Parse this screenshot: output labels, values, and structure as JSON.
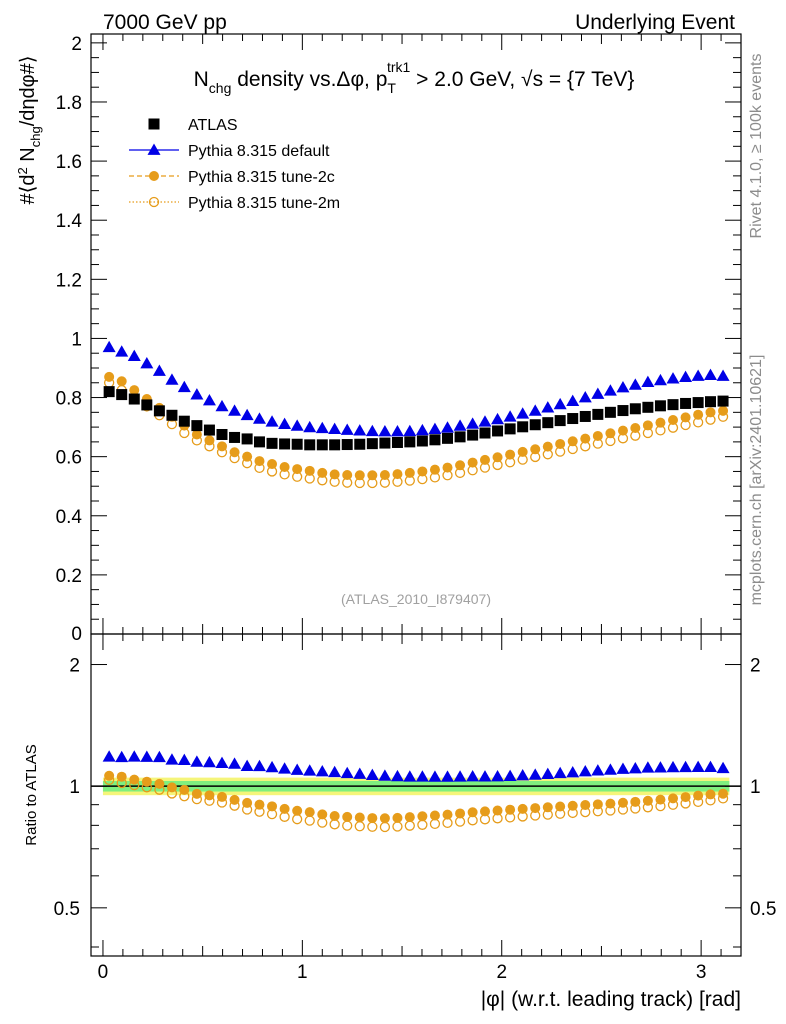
{
  "header": {
    "left": "7000 GeV pp",
    "right": "Underlying Event"
  },
  "side_labels": {
    "top": "Rivet 4.1.0, ≥ 100k events",
    "bottom": "mcplots.cern.ch [arXiv:2401.10621]"
  },
  "colors": {
    "atlas": "#000000",
    "default": "#0000e6",
    "tune2c": "#e69c1a",
    "tune2m": "#e69c1a",
    "band_inner": "#7fef7f",
    "band_outer": "#f5f57a"
  },
  "chart_data": [
    {
      "type": "scatter",
      "title": "N_chg density vs.Δφ, p_T^trk1 > 2.0 GeV, √s = {7 TeV}",
      "title_parts": {
        "main": "N",
        "main_sub": "chg",
        "mid": " density vs.Δφ, p",
        "pt_sub": "T",
        "pt_sup": "trk1",
        "tail": " > 2.0 GeV, √s = {7 TeV}"
      },
      "ylabel": "#⟨d² N_chg/dηdφ#⟩",
      "ylabel_parts": {
        "a": "#⟨d",
        "sup": "2",
        "b": " N",
        "sub": "chg",
        "c": "/dηdφ#⟩"
      },
      "xlim": [
        -0.06,
        3.2
      ],
      "ylim": [
        0,
        2.03
      ],
      "yticks": [
        0.2,
        0.4,
        0.6,
        0.8,
        1,
        1.2,
        1.4,
        1.6,
        1.8,
        2
      ],
      "ytick_labels": [
        "0.2",
        "0.4",
        "0.6",
        "0.8",
        "1",
        "1.2",
        "1.4",
        "1.6",
        "1.8",
        "2"
      ],
      "ytick_zero_label": "0",
      "watermark": "(ATLAS_2010_I879407)",
      "legend": [
        {
          "name": "ATLAS",
          "key": "atlas",
          "marker": "square"
        },
        {
          "name": "Pythia 8.315 default",
          "key": "default",
          "marker": "triangle"
        },
        {
          "name": "Pythia 8.315 tune-2c",
          "key": "tune2c",
          "marker": "circle"
        },
        {
          "name": "Pythia 8.315 tune-2m",
          "key": "tune2m",
          "marker": "open-circle"
        }
      ],
      "x": [
        0.031,
        0.094,
        0.157,
        0.22,
        0.283,
        0.346,
        0.408,
        0.471,
        0.534,
        0.597,
        0.66,
        0.723,
        0.785,
        0.848,
        0.911,
        0.974,
        1.037,
        1.1,
        1.162,
        1.225,
        1.288,
        1.351,
        1.414,
        1.477,
        1.539,
        1.602,
        1.665,
        1.728,
        1.791,
        1.854,
        1.916,
        1.979,
        2.042,
        2.105,
        2.168,
        2.231,
        2.293,
        2.356,
        2.419,
        2.482,
        2.545,
        2.608,
        2.67,
        2.733,
        2.796,
        2.859,
        2.922,
        2.985,
        3.047,
        3.11
      ],
      "series": [
        {
          "name": "ATLAS",
          "key": "atlas",
          "values": [
            0.82,
            0.81,
            0.795,
            0.775,
            0.755,
            0.74,
            0.72,
            0.705,
            0.69,
            0.675,
            0.665,
            0.66,
            0.65,
            0.645,
            0.643,
            0.642,
            0.64,
            0.64,
            0.64,
            0.641,
            0.642,
            0.644,
            0.646,
            0.648,
            0.65,
            0.653,
            0.657,
            0.662,
            0.667,
            0.673,
            0.68,
            0.687,
            0.694,
            0.701,
            0.708,
            0.715,
            0.722,
            0.729,
            0.736,
            0.743,
            0.75,
            0.756,
            0.762,
            0.767,
            0.772,
            0.776,
            0.78,
            0.783,
            0.786,
            0.788
          ]
        },
        {
          "name": "Pythia 8.315 default",
          "key": "default",
          "values": [
            0.97,
            0.955,
            0.94,
            0.915,
            0.89,
            0.86,
            0.835,
            0.81,
            0.79,
            0.77,
            0.755,
            0.74,
            0.728,
            0.718,
            0.71,
            0.704,
            0.699,
            0.696,
            0.693,
            0.69,
            0.688,
            0.686,
            0.685,
            0.685,
            0.686,
            0.689,
            0.693,
            0.698,
            0.704,
            0.711,
            0.718,
            0.726,
            0.735,
            0.745,
            0.755,
            0.766,
            0.777,
            0.788,
            0.8,
            0.812,
            0.823,
            0.834,
            0.843,
            0.852,
            0.858,
            0.864,
            0.869,
            0.873,
            0.876,
            0.873
          ]
        },
        {
          "name": "Pythia 8.315 tune-2c",
          "key": "tune2c",
          "values": [
            0.87,
            0.855,
            0.825,
            0.795,
            0.765,
            0.735,
            0.705,
            0.675,
            0.655,
            0.635,
            0.615,
            0.6,
            0.585,
            0.575,
            0.565,
            0.558,
            0.552,
            0.545,
            0.54,
            0.538,
            0.537,
            0.537,
            0.538,
            0.541,
            0.545,
            0.55,
            0.556,
            0.563,
            0.571,
            0.58,
            0.589,
            0.598,
            0.607,
            0.616,
            0.625,
            0.634,
            0.643,
            0.652,
            0.661,
            0.67,
            0.679,
            0.688,
            0.697,
            0.706,
            0.715,
            0.724,
            0.733,
            0.742,
            0.75,
            0.755
          ]
        },
        {
          "name": "Pythia 8.315 tune-2m",
          "key": "tune2m",
          "values": [
            0.85,
            0.825,
            0.8,
            0.77,
            0.74,
            0.71,
            0.68,
            0.655,
            0.635,
            0.615,
            0.595,
            0.578,
            0.562,
            0.55,
            0.54,
            0.532,
            0.526,
            0.52,
            0.515,
            0.512,
            0.511,
            0.511,
            0.512,
            0.515,
            0.519,
            0.524,
            0.53,
            0.537,
            0.545,
            0.554,
            0.563,
            0.572,
            0.581,
            0.59,
            0.599,
            0.608,
            0.617,
            0.626,
            0.635,
            0.644,
            0.653,
            0.662,
            0.671,
            0.68,
            0.689,
            0.698,
            0.707,
            0.716,
            0.725,
            0.735
          ]
        }
      ]
    },
    {
      "type": "scatter",
      "title": "",
      "ylabel": "Ratio to ATLAS",
      "xlabel": "|φ| (w.r.t. leading track) [rad]",
      "xlim": [
        -0.06,
        3.2
      ],
      "ylim": [
        0.38,
        2.38
      ],
      "yscale": "log",
      "yticks": [
        0.5,
        1,
        2
      ],
      "ytick_labels": [
        "0.5",
        "1",
        "2"
      ],
      "xticks": [
        0,
        1,
        2,
        3
      ],
      "xtick_labels": [
        "0",
        "1",
        "2",
        "3"
      ],
      "band": {
        "inner": 0.03,
        "outer": 0.05
      },
      "series": [
        {
          "name": "Pythia 8.315 default",
          "key": "default",
          "derived": "ratio"
        },
        {
          "name": "Pythia 8.315 tune-2c",
          "key": "tune2c",
          "derived": "ratio"
        },
        {
          "name": "Pythia 8.315 tune-2m",
          "key": "tune2m",
          "derived": "ratio"
        }
      ]
    }
  ]
}
